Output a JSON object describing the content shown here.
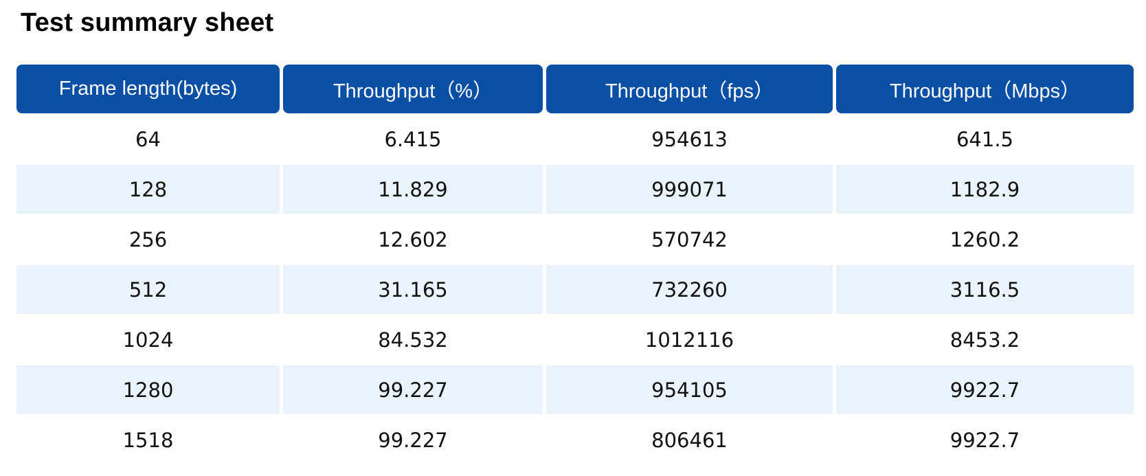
{
  "title": "Test summary sheet",
  "table": {
    "headers": [
      "Frame length(bytes)",
      "Throughput（%）",
      "Throughput（fps）",
      "Throughput（Mbps）"
    ],
    "rows": [
      [
        "64",
        "6.415",
        "954613",
        "641.5"
      ],
      [
        "128",
        "11.829",
        "999071",
        "1182.9"
      ],
      [
        "256",
        "12.602",
        "570742",
        "1260.2"
      ],
      [
        "512",
        "31.165",
        "732260",
        "3116.5"
      ],
      [
        "1024",
        "84.532",
        "1012116",
        "8453.2"
      ],
      [
        "1280",
        "99.227",
        "954105",
        "9922.7"
      ],
      [
        "1518",
        "99.227",
        "806461",
        "9922.7"
      ]
    ]
  },
  "colors": {
    "header_bg": "#0A4FA6",
    "header_text": "#FFFFFF",
    "alt_row_bg": "#EAF3FC",
    "row_bg": "#FFFFFF"
  }
}
